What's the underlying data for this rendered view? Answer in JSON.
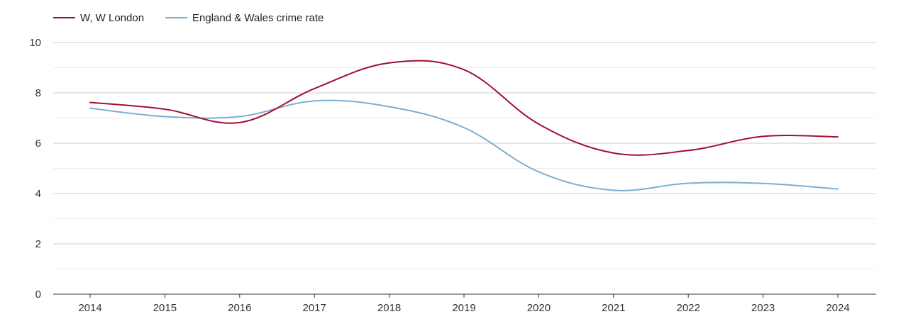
{
  "chart_data": {
    "type": "line",
    "title": "",
    "xlabel": "",
    "ylabel": "",
    "x": [
      2014,
      2015,
      2016,
      2017,
      2018,
      2019,
      2020,
      2021,
      2022,
      2023,
      2024
    ],
    "x_tick_labels": [
      "2014",
      "2015",
      "2016",
      "2017",
      "2018",
      "2019",
      "2020",
      "2021",
      "2022",
      "2023",
      "2024"
    ],
    "ylim": [
      0,
      10
    ],
    "y_ticks": [
      0,
      2,
      4,
      6,
      8,
      10
    ],
    "y_tick_labels": [
      "0",
      "2",
      "4",
      "6",
      "8",
      "10"
    ],
    "grid": true,
    "legend_position": "top-left",
    "series": [
      {
        "name": "W, W London",
        "color": "#a0102e",
        "values": [
          7.62,
          7.35,
          6.82,
          8.17,
          9.19,
          8.92,
          6.76,
          5.61,
          5.71,
          6.27,
          6.25
        ]
      },
      {
        "name": "England & Wales crime rate",
        "color": "#7aaed2",
        "values": [
          7.39,
          7.06,
          7.06,
          7.68,
          7.45,
          6.62,
          4.86,
          4.13,
          4.41,
          4.4,
          4.18
        ]
      }
    ]
  }
}
